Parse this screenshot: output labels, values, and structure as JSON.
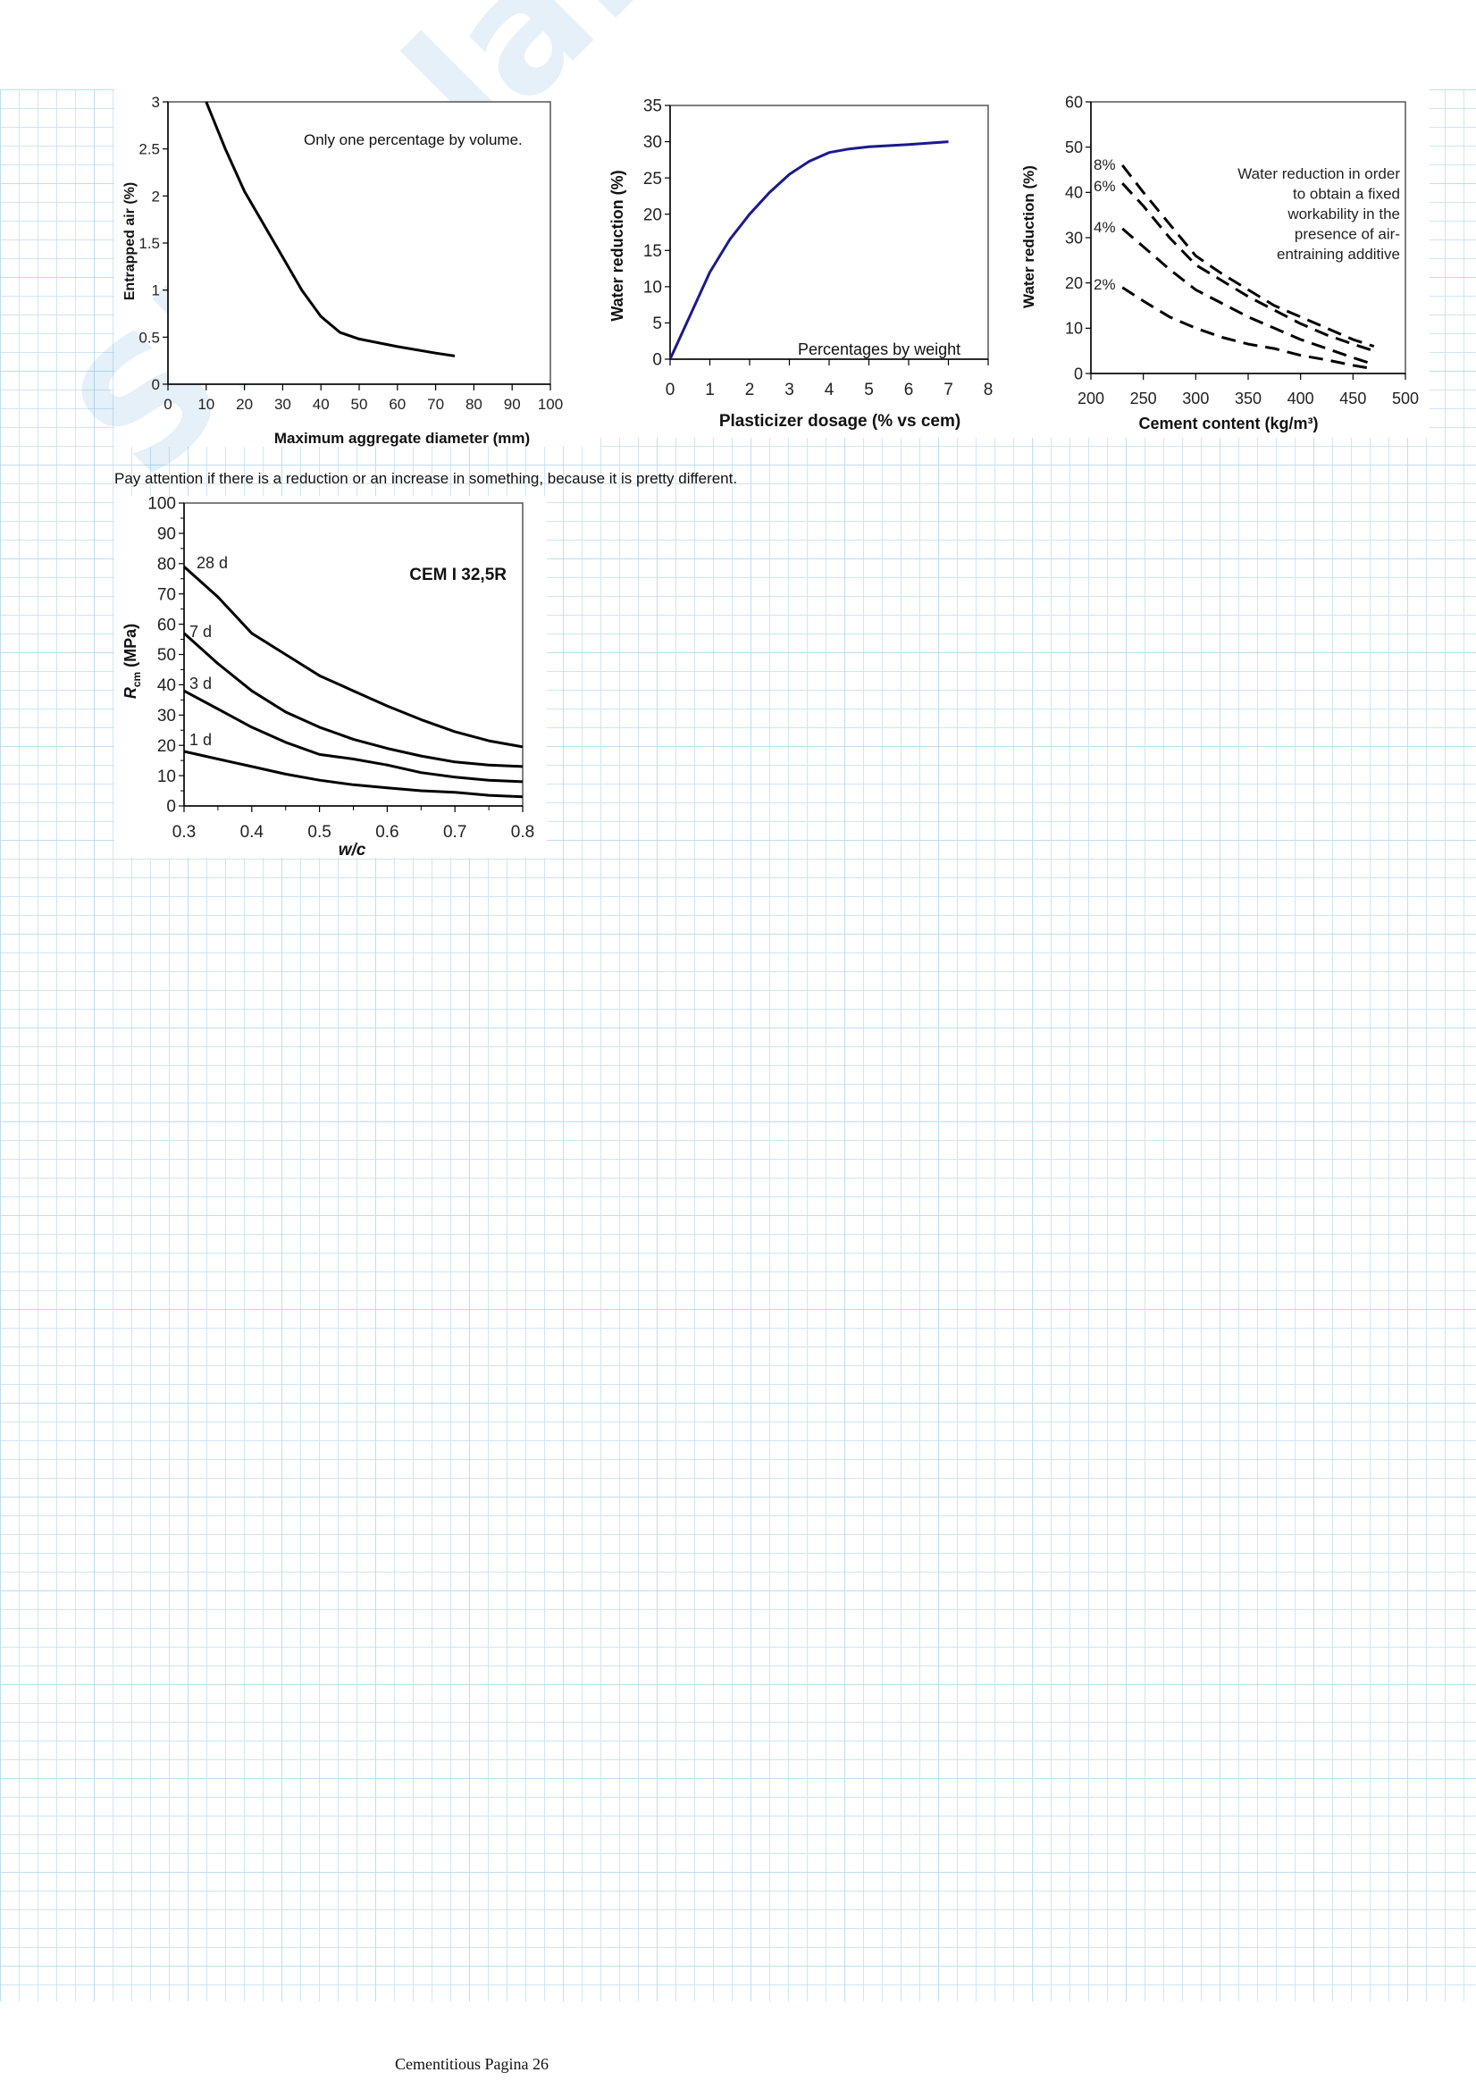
{
  "page": {
    "note": "Pay attention if there is a reduction or an increase in something, because it is pretty different.",
    "footer": "Cementitious Pagina 26",
    "watermark": "Skuola.net",
    "grid_color": "#cfe6f4"
  },
  "chart_data": [
    {
      "type": "line",
      "xlabel": "Maximum aggregate diameter (mm)",
      "ylabel": "Entrapped air (%)",
      "xlim": [
        0,
        100
      ],
      "ylim": [
        0,
        3
      ],
      "xticks": [
        "0",
        "10",
        "20",
        "30",
        "40",
        "50",
        "60",
        "70",
        "80",
        "90",
        "100"
      ],
      "yticks": [
        "0",
        "0.5",
        "1",
        "1.5",
        "2",
        "2.5",
        "3"
      ],
      "annotation": "Only one percentage by volume.",
      "grid": false,
      "series": [
        {
          "color": "#000000",
          "dash": false,
          "x": [
            10,
            15,
            20,
            25,
            30,
            35,
            40,
            45,
            50,
            60,
            70,
            75
          ],
          "y": [
            3,
            2.5,
            2.05,
            1.7,
            1.35,
            1.0,
            0.72,
            0.55,
            0.48,
            0.4,
            0.33,
            0.3
          ]
        }
      ]
    },
    {
      "type": "line",
      "xlabel": "Plasticizer dosage (% vs cem)",
      "ylabel": "Water reduction (%)",
      "xlim": [
        0,
        8
      ],
      "ylim": [
        0,
        35
      ],
      "xticks": [
        "0",
        "1",
        "2",
        "3",
        "4",
        "5",
        "6",
        "7",
        "8"
      ],
      "yticks": [
        "0",
        "5",
        "10",
        "15",
        "20",
        "25",
        "30",
        "35"
      ],
      "annotation": "Percentages by weight",
      "grid": false,
      "series": [
        {
          "color": "#1a1a8c",
          "dash": false,
          "x": [
            0,
            0.5,
            1,
            1.5,
            2,
            2.5,
            3,
            3.5,
            4,
            4.5,
            5,
            6,
            7
          ],
          "y": [
            0,
            6,
            12,
            16.5,
            20,
            23,
            25.5,
            27.3,
            28.5,
            29,
            29.3,
            29.6,
            30
          ]
        }
      ]
    },
    {
      "type": "line",
      "xlabel": "Cement content (kg/m³)",
      "ylabel": "Water reduction (%)",
      "xlim": [
        200,
        500
      ],
      "ylim": [
        0,
        60
      ],
      "xticks": [
        "200",
        "250",
        "300",
        "350",
        "400",
        "450",
        "500"
      ],
      "yticks": [
        "0",
        "10",
        "20",
        "30",
        "40",
        "50",
        "60"
      ],
      "annotation_lines": [
        "Water reduction in order",
        "to obtain a fixed",
        "workability  in the",
        "presence of air-",
        "entraining additive"
      ],
      "grid": false,
      "series": [
        {
          "name": "8%",
          "color": "#000000",
          "dash": true,
          "x": [
            230,
            250,
            275,
            300,
            325,
            350,
            375,
            400,
            425,
            450,
            470
          ],
          "y": [
            46,
            40,
            33,
            26,
            22,
            18.5,
            15,
            12.5,
            10,
            7.5,
            6
          ]
        },
        {
          "name": "6%",
          "color": "#000000",
          "dash": true,
          "x": [
            230,
            250,
            275,
            300,
            325,
            350,
            375,
            400,
            425,
            450,
            470
          ],
          "y": [
            42,
            37,
            30,
            24,
            20.5,
            17,
            14,
            11,
            8.5,
            6.5,
            5
          ]
        },
        {
          "name": "4%",
          "color": "#000000",
          "dash": true,
          "x": [
            230,
            250,
            275,
            300,
            325,
            350,
            375,
            400,
            425,
            450,
            470
          ],
          "y": [
            32,
            28,
            23,
            18.5,
            15.5,
            12.5,
            10,
            7.5,
            5.5,
            3.5,
            2
          ]
        },
        {
          "name": "2%",
          "color": "#000000",
          "dash": true,
          "x": [
            230,
            250,
            275,
            300,
            325,
            350,
            375,
            400,
            425,
            450,
            470
          ],
          "y": [
            19,
            16,
            12.5,
            10,
            8,
            6.5,
            5.5,
            4,
            3,
            1.8,
            1
          ]
        }
      ]
    },
    {
      "type": "line",
      "xlabel": "w/c",
      "ylabel": "R",
      "ylabel_sub": "cm",
      "ylabel_unit": " (MPa)",
      "xlim": [
        0.3,
        0.8
      ],
      "ylim": [
        0,
        100
      ],
      "xticks": [
        "0.3",
        "0.4",
        "0.5",
        "0.6",
        "0.7",
        "0.8"
      ],
      "yticks": [
        "0",
        "10",
        "20",
        "30",
        "40",
        "50",
        "60",
        "70",
        "80",
        "90",
        "100"
      ],
      "annotation": "CEM I 32,5R",
      "grid": false,
      "series": [
        {
          "name": "28 d",
          "color": "#000000",
          "dash": false,
          "x": [
            0.3,
            0.35,
            0.4,
            0.45,
            0.5,
            0.55,
            0.6,
            0.65,
            0.7,
            0.75,
            0.8
          ],
          "y": [
            79,
            69,
            57,
            50,
            43,
            38,
            33,
            28.5,
            24.5,
            21.5,
            19.5
          ]
        },
        {
          "name": "7 d",
          "color": "#000000",
          "dash": false,
          "x": [
            0.3,
            0.35,
            0.4,
            0.45,
            0.5,
            0.55,
            0.6,
            0.65,
            0.7,
            0.75,
            0.8
          ],
          "y": [
            57,
            47,
            38,
            31,
            26,
            22,
            19,
            16.5,
            14.5,
            13.5,
            13
          ]
        },
        {
          "name": "3 d",
          "color": "#000000",
          "dash": false,
          "x": [
            0.3,
            0.35,
            0.4,
            0.45,
            0.5,
            0.55,
            0.6,
            0.65,
            0.7,
            0.75,
            0.8
          ],
          "y": [
            38,
            32,
            26,
            21,
            17,
            15.5,
            13.5,
            11,
            9.5,
            8.5,
            8
          ]
        },
        {
          "name": "1 d",
          "color": "#000000",
          "dash": false,
          "x": [
            0.3,
            0.35,
            0.4,
            0.45,
            0.5,
            0.55,
            0.6,
            0.65,
            0.7,
            0.75,
            0.8
          ],
          "y": [
            18,
            15.5,
            13,
            10.5,
            8.5,
            7,
            6,
            5,
            4.5,
            3.5,
            3
          ]
        }
      ]
    }
  ]
}
